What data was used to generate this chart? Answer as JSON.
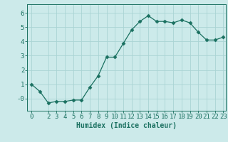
{
  "x": [
    0,
    1,
    2,
    3,
    4,
    5,
    6,
    7,
    8,
    9,
    10,
    11,
    12,
    13,
    14,
    15,
    16,
    17,
    18,
    19,
    20,
    21,
    22,
    23
  ],
  "y": [
    1.0,
    0.5,
    -0.3,
    -0.2,
    -0.2,
    -0.1,
    -0.1,
    0.8,
    1.6,
    2.9,
    2.9,
    3.85,
    4.8,
    5.4,
    5.8,
    5.4,
    5.4,
    5.3,
    5.5,
    5.3,
    4.65,
    4.1,
    4.1,
    4.3
  ],
  "line_color": "#1a7060",
  "marker": "D",
  "marker_size": 2.5,
  "bg_color": "#cceaea",
  "grid_color": "#aad4d4",
  "xlabel": "Humidex (Indice chaleur)",
  "xlim_min": -0.5,
  "xlim_max": 23.3,
  "ylim_min": -0.85,
  "ylim_max": 6.6,
  "yticks": [
    0,
    1,
    2,
    3,
    4,
    5,
    6
  ],
  "ytick_labels": [
    "-0",
    "1",
    "2",
    "3",
    "4",
    "5",
    "6"
  ],
  "xticks": [
    0,
    2,
    3,
    4,
    5,
    6,
    7,
    8,
    9,
    10,
    11,
    12,
    13,
    14,
    15,
    16,
    17,
    18,
    19,
    20,
    21,
    22,
    23
  ],
  "tick_color": "#1a7060",
  "label_fontsize": 7,
  "tick_fontsize": 6.5
}
